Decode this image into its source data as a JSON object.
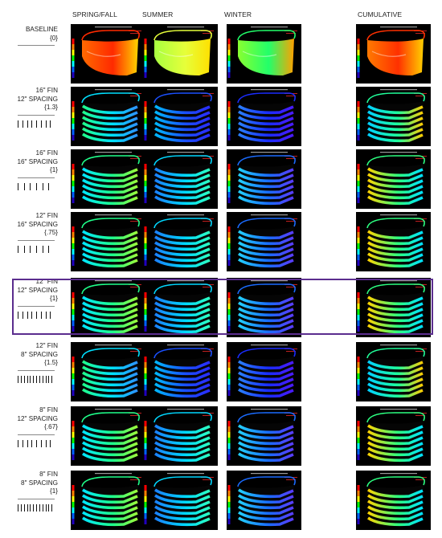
{
  "columns": [
    "SPRING/FALL",
    "SUMMER",
    "WINTER",
    "CUMULATIVE"
  ],
  "rows": [
    {
      "lines": [
        "BASELINE",
        "{0}"
      ],
      "ticks": 0,
      "tone": "baseline",
      "winter": true
    },
    {
      "lines": [
        "16\" FIN",
        "12\" SPACING",
        "{1.3}"
      ],
      "ticks": 8,
      "tone": "cool",
      "winter": true
    },
    {
      "lines": [
        "16\" FIN",
        "16\" SPACING",
        "{1}"
      ],
      "ticks": 6,
      "tone": "mid",
      "winter": true
    },
    {
      "lines": [
        "12\" FIN",
        "16\" SPACING",
        "{.75}"
      ],
      "ticks": 6,
      "tone": "mid",
      "winter": true
    },
    {
      "lines": [
        "12\" FIN",
        "12\" SPACING",
        "{1}"
      ],
      "ticks": 8,
      "tone": "mid",
      "winter": true
    },
    {
      "lines": [
        "12\" FIN",
        "8\" SPACING",
        "{1.5}"
      ],
      "ticks": 12,
      "tone": "cool",
      "winter": true
    },
    {
      "lines": [
        "8\" FIN",
        "12\" SPACING",
        "{.67}"
      ],
      "ticks": 8,
      "tone": "mid",
      "winter": true
    },
    {
      "lines": [
        "8\" FIN",
        "8\" SPACING",
        "{1}"
      ],
      "ticks": 12,
      "tone": "mid",
      "winter": true
    }
  ],
  "highlight_row": 4,
  "highlight_color": "#5b2d8e"
}
